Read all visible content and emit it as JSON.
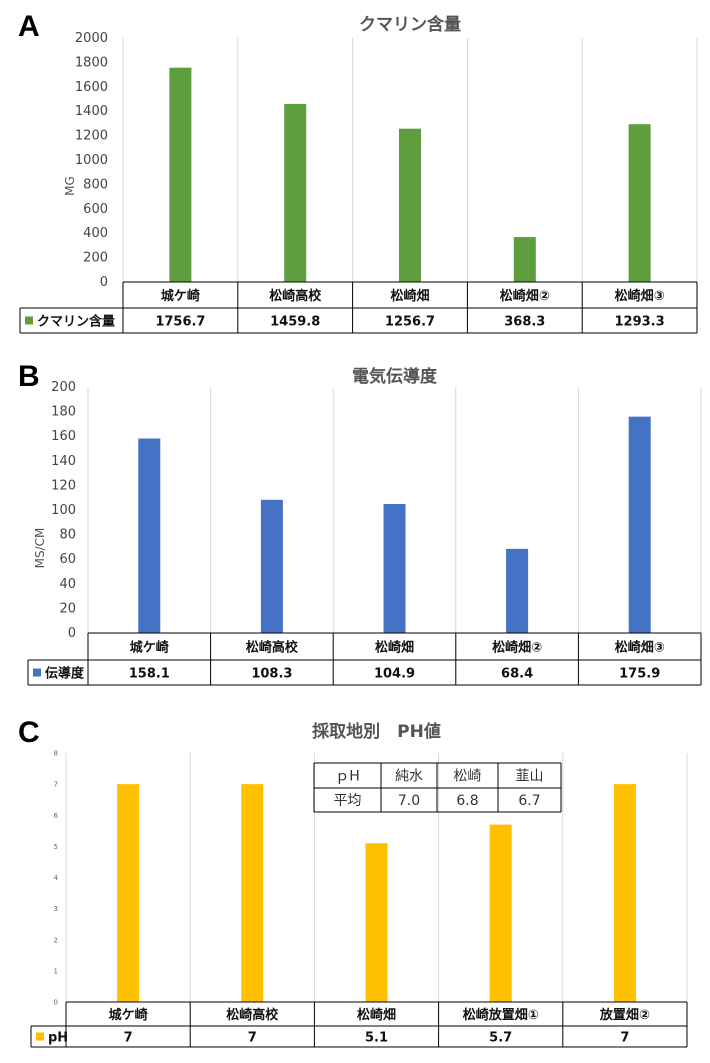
{
  "chart_data": [
    {
      "panel": "A",
      "type": "bar",
      "title": "クマリン含量",
      "ylabel": "MG",
      "ylim": [
        0,
        2000
      ],
      "yticks": [
        0,
        200,
        400,
        600,
        800,
        1000,
        1200,
        1400,
        1600,
        1800,
        2000
      ],
      "categories": [
        "城ケ崎",
        "松崎高校",
        "松崎畑",
        "松崎畑②",
        "松崎畑③"
      ],
      "series": [
        {
          "name": "クマリン含量",
          "values": [
            1756.7,
            1459.8,
            1256.7,
            368.3,
            1293.3
          ],
          "labels": [
            "1756.7",
            "1459.8",
            "1256.7",
            "368.3",
            "1293.3"
          ]
        }
      ],
      "color": "#5f9e3f",
      "grid": "vertical category separators",
      "legend": "data table"
    },
    {
      "panel": "B",
      "type": "bar",
      "title": "電気伝導度",
      "ylabel": "MS/CM",
      "ylim": [
        0,
        200
      ],
      "yticks": [
        0,
        20,
        40,
        60,
        80,
        100,
        120,
        140,
        160,
        180,
        200
      ],
      "categories": [
        "城ケ崎",
        "松崎高校",
        "松崎畑",
        "松崎畑②",
        "松崎畑③"
      ],
      "series": [
        {
          "name": "伝導度",
          "values": [
            158.1,
            108.3,
            104.9,
            68.4,
            175.9
          ],
          "labels": [
            "158.1",
            "108.3",
            "104.9",
            "68.4",
            "175.9"
          ]
        }
      ],
      "color": "#4472c4",
      "grid": "vertical category separators",
      "legend": "data table"
    },
    {
      "panel": "C",
      "type": "bar",
      "title": "採取地別　PH値",
      "ylabel": "",
      "ylim": [
        0,
        8
      ],
      "yticks": [
        0,
        1,
        2,
        3,
        4,
        5,
        6,
        7,
        8
      ],
      "categories": [
        "城ケ崎",
        "松崎高校",
        "松崎畑",
        "松崎放置畑①",
        "放置畑②"
      ],
      "series": [
        {
          "name": "pH",
          "values": [
            7,
            7,
            5.1,
            5.7,
            7
          ],
          "labels": [
            "7",
            "7",
            "5.1",
            "5.7",
            "7"
          ]
        }
      ],
      "color": "#ffc000",
      "grid": "vertical category separators",
      "legend": "data table",
      "inset_table": {
        "header": [
          "ｐH",
          "純水",
          "松崎",
          "韮山"
        ],
        "row": [
          "平均",
          "7.0",
          "6.8",
          "6.7"
        ]
      }
    }
  ]
}
